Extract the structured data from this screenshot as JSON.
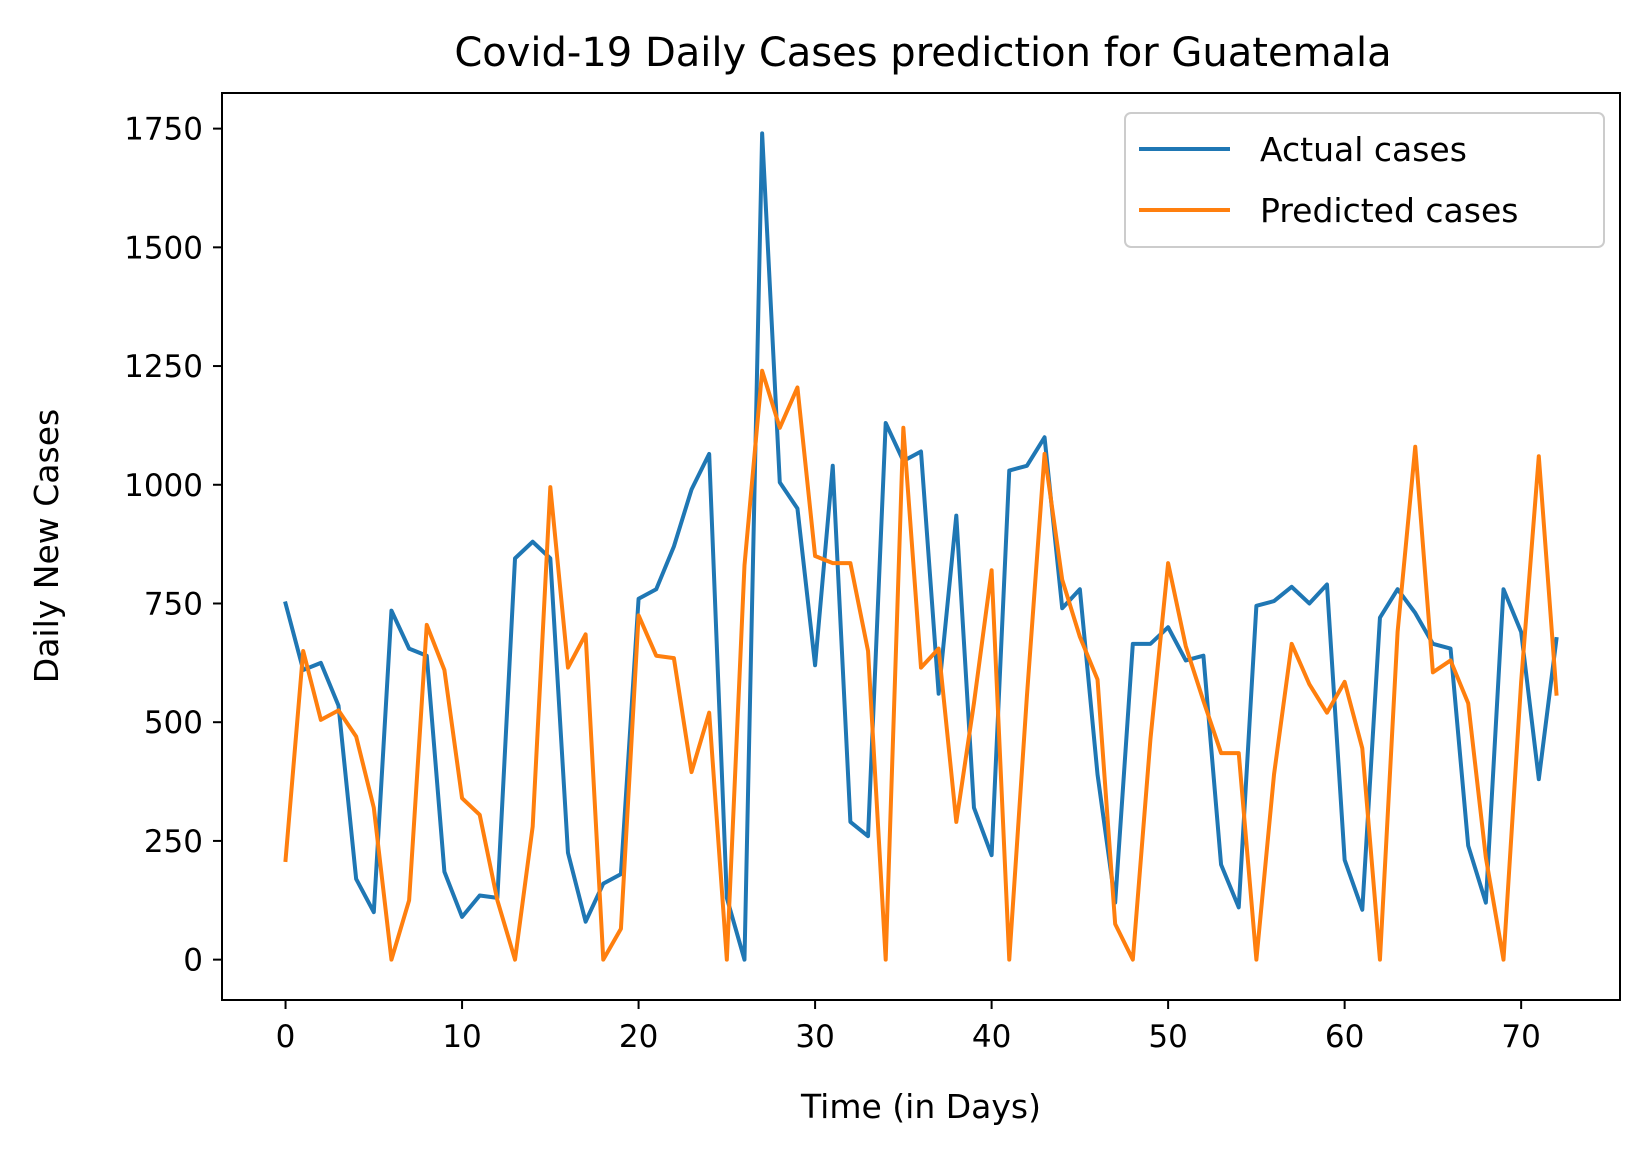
{
  "chart_data": {
    "type": "line",
    "title": "Covid-19 Daily Cases prediction for Guatemala",
    "xlabel": "Time (in Days)",
    "ylabel": "Daily New Cases",
    "xlim": [
      -3.6,
      75.6
    ],
    "ylim": [
      -85,
      1825
    ],
    "xticks": [
      0,
      10,
      20,
      30,
      40,
      50,
      60,
      70
    ],
    "yticks": [
      0,
      250,
      500,
      750,
      1000,
      1250,
      1500,
      1750
    ],
    "grid": false,
    "legend_position": "top-right",
    "series": [
      {
        "name": "Actual cases",
        "color": "#1f77b4",
        "values": [
          750,
          610,
          625,
          535,
          170,
          100,
          735,
          655,
          640,
          185,
          90,
          135,
          130,
          845,
          880,
          845,
          225,
          80,
          160,
          180,
          760,
          780,
          870,
          990,
          1065,
          130,
          0,
          1740,
          1005,
          950,
          620,
          1040,
          290,
          260,
          1130,
          1050,
          1070,
          560,
          935,
          320,
          220,
          1030,
          1040,
          1100,
          740,
          780,
          390,
          120,
          665,
          665,
          700,
          630,
          640,
          200,
          110,
          745,
          755,
          785,
          750,
          790,
          210,
          105,
          720,
          780,
          730,
          665,
          655,
          240,
          120,
          780,
          690,
          380,
          675
        ]
      },
      {
        "name": "Predicted cases",
        "color": "#ff7f0e",
        "values": [
          210,
          650,
          505,
          525,
          470,
          320,
          0,
          125,
          705,
          610,
          340,
          305,
          125,
          0,
          280,
          995,
          615,
          685,
          0,
          65,
          725,
          640,
          635,
          395,
          520,
          0,
          830,
          1240,
          1120,
          1205,
          850,
          835,
          835,
          650,
          0,
          1120,
          615,
          655,
          290,
          540,
          820,
          0,
          555,
          1065,
          800,
          680,
          590,
          75,
          0,
          465,
          835,
          660,
          545,
          435,
          435,
          0,
          390,
          665,
          580,
          520,
          585,
          445,
          0,
          690,
          1080,
          605,
          630,
          540,
          215,
          0,
          585,
          1060,
          560
        ]
      }
    ]
  }
}
